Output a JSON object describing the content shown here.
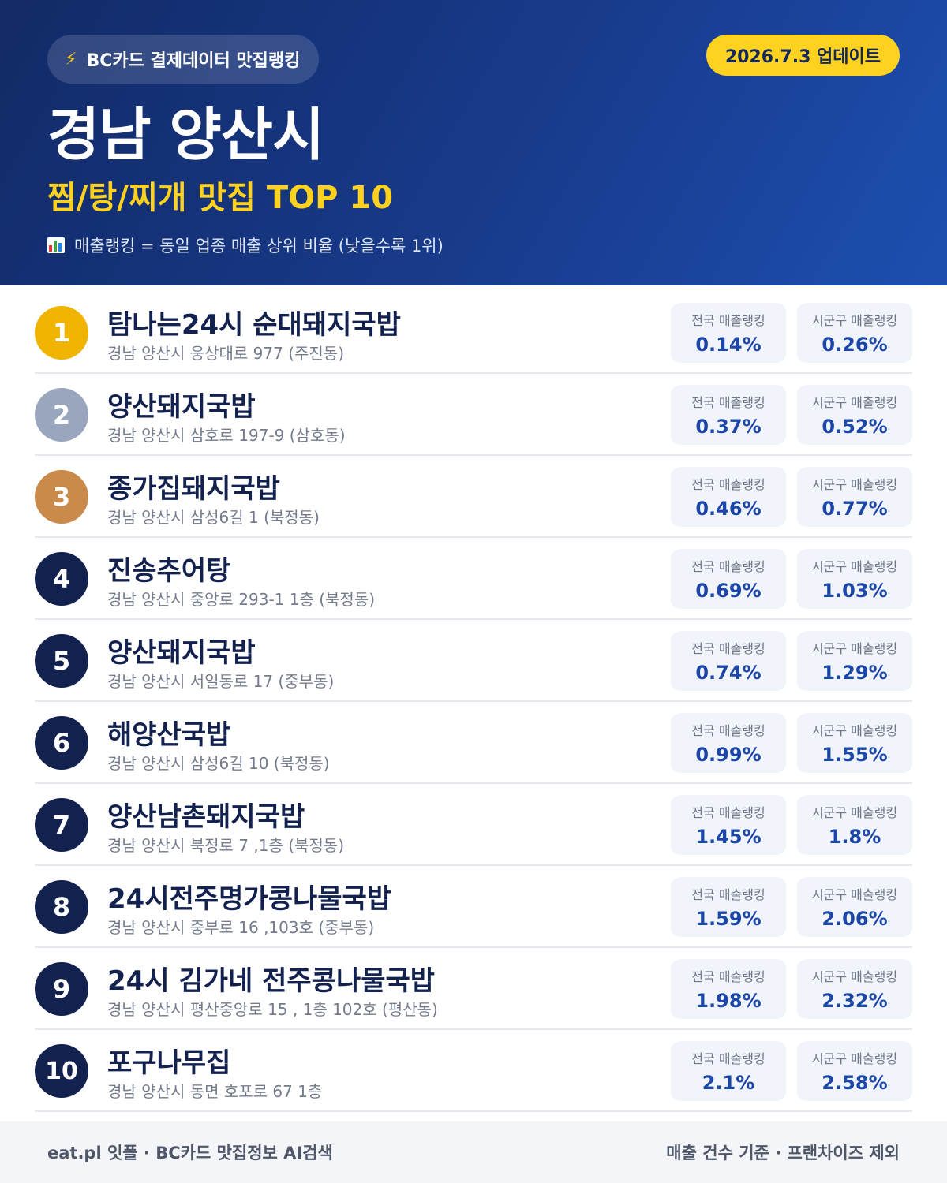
{
  "header": {
    "source_label": "BC카드 결제데이터 맛집랭킹",
    "update_label": "2026.7.3 업데이트",
    "region": "경남 양산시",
    "subtitle": "찜/탕/찌개 맛집 TOP 10",
    "note": "매출랭킹 = 동일 업종 매출 상위 비율 (낮을수록 1위)",
    "note_icon": "bar-chart-icon",
    "source_icon": "lightning-icon"
  },
  "stat_labels": {
    "national": "전국 매출랭킹",
    "local": "시군구 매출랭킹"
  },
  "colors": {
    "header_dark": "#122a66",
    "header_light": "#1d4fb0",
    "accent_yellow": "#ffd21f",
    "gold": "#f0b400",
    "silver": "#9aa6bd",
    "bronze": "#c98a4b",
    "navy": "#13214f",
    "value_blue": "#1c47a8"
  },
  "restaurants": [
    {
      "rank": "1",
      "name": "탐나는24시 순대돼지국밥",
      "address": "경남 양산시 웅상대로 977 (주진동)",
      "national": "0.14%",
      "local": "0.26%",
      "badge_color": "#f0b400"
    },
    {
      "rank": "2",
      "name": "양산돼지국밥",
      "address": "경남 양산시 삼호로 197-9 (삼호동)",
      "national": "0.37%",
      "local": "0.52%",
      "badge_color": "#9aa6bd"
    },
    {
      "rank": "3",
      "name": "종가집돼지국밥",
      "address": "경남 양산시 삼성6길 1 (북정동)",
      "national": "0.46%",
      "local": "0.77%",
      "badge_color": "#c98a4b"
    },
    {
      "rank": "4",
      "name": "진송추어탕",
      "address": "경남 양산시 중앙로 293-1 1층 (북정동)",
      "national": "0.69%",
      "local": "1.03%",
      "badge_color": "#13214f"
    },
    {
      "rank": "5",
      "name": "양산돼지국밥",
      "address": "경남 양산시 서일동로 17 (중부동)",
      "national": "0.74%",
      "local": "1.29%",
      "badge_color": "#13214f"
    },
    {
      "rank": "6",
      "name": "해양산국밥",
      "address": "경남 양산시 삼성6길 10 (북정동)",
      "national": "0.99%",
      "local": "1.55%",
      "badge_color": "#13214f"
    },
    {
      "rank": "7",
      "name": "양산남촌돼지국밥",
      "address": "경남 양산시 북정로 7 ,1층 (북정동)",
      "national": "1.45%",
      "local": "1.8%",
      "badge_color": "#13214f"
    },
    {
      "rank": "8",
      "name": "24시전주명가콩나물국밥",
      "address": "경남 양산시 중부로 16 ,103호 (중부동)",
      "national": "1.59%",
      "local": "2.06%",
      "badge_color": "#13214f"
    },
    {
      "rank": "9",
      "name": "24시 김가네 전주콩나물국밥",
      "address": "경남 양산시 평산중앙로 15 , 1층 102호 (평산동)",
      "national": "1.98%",
      "local": "2.32%",
      "badge_color": "#13214f"
    },
    {
      "rank": "10",
      "name": "포구나무집",
      "address": "경남 양산시 동면 호포로 67 1층",
      "national": "2.1%",
      "local": "2.58%",
      "badge_color": "#13214f"
    }
  ],
  "footer": {
    "left": "eat.pl 잇플 · BC카드 맛집정보 AI검색",
    "right": "매출 건수 기준 · 프랜차이즈 제외"
  }
}
